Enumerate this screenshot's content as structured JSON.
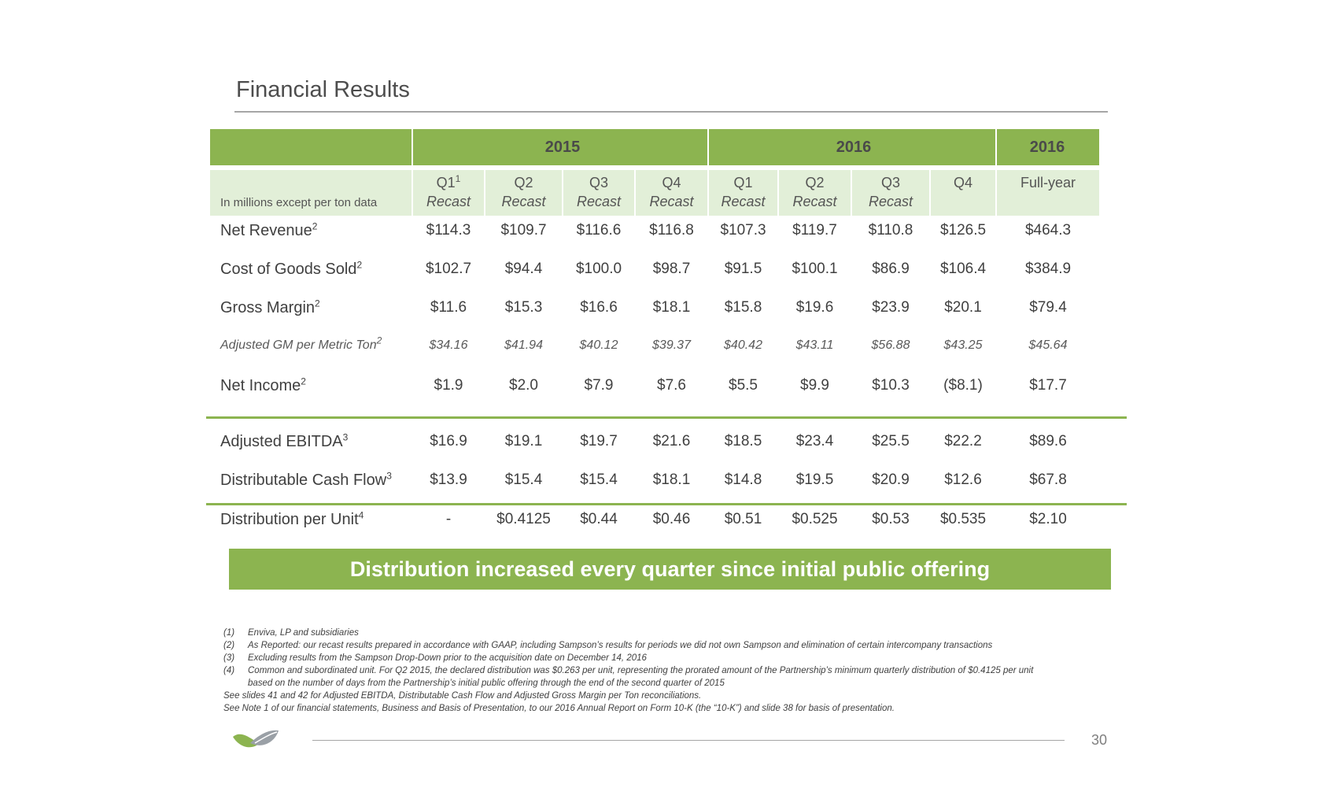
{
  "title": "Financial Results",
  "colors": {
    "green": "#8cb450",
    "light_green": "#e2efd8",
    "text": "#404040"
  },
  "years": [
    {
      "label": "2015"
    },
    {
      "label": "2016"
    },
    {
      "label": "2016"
    }
  ],
  "units_label": "In millions except per ton data",
  "columns": [
    {
      "q": "Q1",
      "sup": "1",
      "sub": "Recast"
    },
    {
      "q": "Q2",
      "sup": "",
      "sub": "Recast"
    },
    {
      "q": "Q3",
      "sup": "",
      "sub": "Recast"
    },
    {
      "q": "Q4",
      "sup": "",
      "sub": "Recast"
    },
    {
      "q": "Q1",
      "sup": "",
      "sub": "Recast"
    },
    {
      "q": "Q2",
      "sup": "",
      "sub": "Recast"
    },
    {
      "q": "Q3",
      "sup": "",
      "sub": "Recast"
    },
    {
      "q": "Q4",
      "sup": "",
      "sub": ""
    },
    {
      "q": "Full-year",
      "sup": "",
      "sub": ""
    }
  ],
  "rows": [
    {
      "label": "Net Revenue",
      "sup": "2",
      "italic": false,
      "values": [
        "$114.3",
        "$109.7",
        "$116.6",
        "$116.8",
        "$107.3",
        "$119.7",
        "$110.8",
        "$126.5",
        "$464.3"
      ]
    },
    {
      "label": "Cost of Goods Sold",
      "sup": "2",
      "italic": false,
      "values": [
        "$102.7",
        "$94.4",
        "$100.0",
        "$98.7",
        "$91.5",
        "$100.1",
        "$86.9",
        "$106.4",
        "$384.9"
      ]
    },
    {
      "label": "Gross Margin",
      "sup": "2",
      "italic": false,
      "values": [
        "$11.6",
        "$15.3",
        "$16.6",
        "$18.1",
        "$15.8",
        "$19.6",
        "$23.9",
        "$20.1",
        "$79.4"
      ]
    },
    {
      "label": "Adjusted GM per Metric Ton",
      "sup": "2",
      "italic": true,
      "values": [
        "$34.16",
        "$41.94",
        "$40.12",
        "$39.37",
        "$40.42",
        "$43.11",
        "$56.88",
        "$43.25",
        "$45.64"
      ]
    },
    {
      "label": "Net Income",
      "sup": "2",
      "italic": false,
      "values": [
        "$1.9",
        "$2.0",
        "$7.9",
        "$7.6",
        "$5.5",
        "$9.9",
        "$10.3",
        "($8.1)",
        "$17.7"
      ]
    },
    {
      "label": "Adjusted EBITDA",
      "sup": "3",
      "italic": false,
      "values": [
        "$16.9",
        "$19.1",
        "$19.7",
        "$21.6",
        "$18.5",
        "$23.4",
        "$25.5",
        "$22.2",
        "$89.6"
      ]
    },
    {
      "label": "Distributable Cash Flow",
      "sup": "3",
      "italic": false,
      "values": [
        "$13.9",
        "$15.4",
        "$15.4",
        "$18.1",
        "$14.8",
        "$19.5",
        "$20.9",
        "$12.6",
        "$67.8"
      ]
    },
    {
      "label": "Distribution per Unit",
      "sup": "4",
      "italic": false,
      "values": [
        "-",
        "$0.4125",
        "$0.44",
        "$0.46",
        "$0.51",
        "$0.525",
        "$0.53",
        "$0.535",
        "$2.10"
      ]
    }
  ],
  "banner": "Distribution increased every quarter since initial public offering",
  "footnotes": [
    {
      "num": "(1)",
      "text": "Enviva, LP and subsidiaries"
    },
    {
      "num": "(2)",
      "text": "As Reported: our recast results prepared in accordance with GAAP, including Sampson’s results for periods we did not own Sampson and elimination of certain intercompany transactions"
    },
    {
      "num": "(3)",
      "text": "Excluding results from the Sampson Drop-Down prior to the acquisition date on December 14, 2016"
    },
    {
      "num": "(4)",
      "text": "Common and subordinated unit.  For Q2 2015, the declared distribution was $0.263 per unit, representing the prorated amount of the Partnership’s minimum quarterly distribution of $0.4125 per unit"
    }
  ],
  "footnote_cont": "based on the number of days from the Partnership’s initial public offering through the end of the second quarter of 2015",
  "see_notes": [
    "See slides 41 and 42 for Adjusted EBITDA, Distributable Cash Flow and Adjusted Gross Margin per Ton reconciliations.",
    "See Note 1 of our financial statements, Business and Basis of Presentation, to our 2016 Annual Report on Form 10-K (the “10-K”) and slide 38 for basis of presentation."
  ],
  "page_number": "30",
  "logo_icon": "enviva-leaf-logo-icon"
}
